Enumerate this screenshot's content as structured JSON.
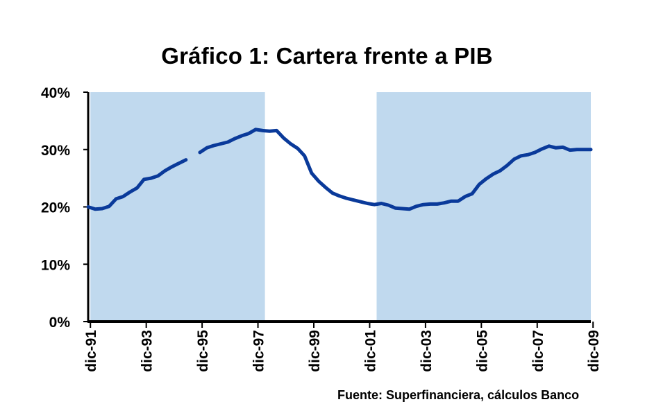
{
  "chart_data": {
    "type": "line",
    "title": "Gráfico 1: Cartera frente a PIB",
    "source": "Fuente: Superfinanciera, cálculos Banco",
    "ylim": [
      0,
      40
    ],
    "y_ticks": [
      "0%",
      "10%",
      "20%",
      "30%",
      "40%"
    ],
    "x_tick_labels": [
      "dic-91",
      "dic-93",
      "dic-95",
      "dic-97",
      "dic-99",
      "dic-01",
      "dic-03",
      "dic-05",
      "dic-07",
      "dic-09"
    ],
    "shaded_periods": [
      {
        "from": "dic-91",
        "to": "mar-98"
      },
      {
        "from": "mar-02",
        "to": "dic-09"
      }
    ],
    "colors": {
      "line": "#0a3a9a",
      "shade": "#c0d9ee",
      "axis": "#000000"
    },
    "grid": false,
    "legend": "none",
    "series": [
      {
        "x": [
          1991.92,
          1992.17,
          1992.42,
          1992.67,
          1992.92,
          1993.17,
          1993.42,
          1993.67,
          1993.92,
          1994.17,
          1994.42,
          1994.67,
          1994.92,
          1995.17,
          1995.42,
          1995.67,
          1995.92,
          1996.17,
          1996.42,
          1996.67,
          1996.92,
          1997.17,
          1997.42,
          1997.67,
          1997.92,
          1998.17,
          1998.42,
          1998.67,
          1998.92,
          1999.17,
          1999.42,
          1999.67,
          1999.92,
          2000.17,
          2000.42,
          2000.67,
          2000.92,
          2001.17,
          2001.42,
          2001.67,
          2001.92,
          2002.17,
          2002.42,
          2002.67,
          2002.92,
          2003.17,
          2003.42,
          2003.67,
          2003.92,
          2004.17,
          2004.42,
          2004.67,
          2004.92,
          2005.17,
          2005.42,
          2005.67,
          2005.92,
          2006.17,
          2006.42,
          2006.67,
          2006.92,
          2007.17,
          2007.42,
          2007.67,
          2007.92,
          2008.17,
          2008.42,
          2008.67,
          2008.92,
          2009.17,
          2009.42,
          2009.67,
          2009.92
        ],
        "values": [
          20.0,
          19.6,
          19.7,
          20.1,
          21.4,
          21.8,
          22.6,
          23.3,
          24.8,
          25.0,
          25.4,
          26.3,
          27.0,
          27.6,
          28.2,
          null,
          29.5,
          30.3,
          30.7,
          31.0,
          31.3,
          31.9,
          32.4,
          32.8,
          33.5,
          33.3,
          33.2,
          33.3,
          32.0,
          31.0,
          30.2,
          28.9,
          25.9,
          24.5,
          23.4,
          22.4,
          21.9,
          21.5,
          21.2,
          20.9,
          20.6,
          20.4,
          20.6,
          20.3,
          19.8,
          19.7,
          19.6,
          20.1,
          20.4,
          20.5,
          20.5,
          20.7,
          21.0,
          21.0,
          21.8,
          22.3,
          23.9,
          24.9,
          25.7,
          26.3,
          27.2,
          28.3,
          28.9,
          29.1,
          29.5,
          30.1,
          30.6,
          30.3,
          30.4,
          29.9,
          30.0,
          30.0,
          30.0
        ]
      }
    ]
  }
}
